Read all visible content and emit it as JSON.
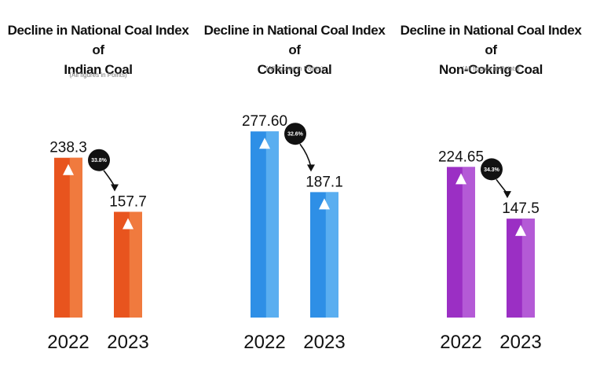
{
  "chart_data": [
    {
      "type": "bar",
      "title_lines": [
        "Decline in National Coal Index of",
        "Indian Coal"
      ],
      "subtitle": "(All figures in Points)",
      "categories": [
        "2022",
        "2023"
      ],
      "values": [
        238.3,
        157.7
      ],
      "value_labels": [
        "238.3",
        "157.7"
      ],
      "decline_label": "33.8%",
      "color": "#e8541e",
      "highlight": "#f07a3e"
    },
    {
      "type": "bar",
      "title_lines": [
        "Decline in National Coal Index of",
        "Coking Coal"
      ],
      "subtitle": "(All figures in Points)",
      "categories": [
        "2022",
        "2023"
      ],
      "values": [
        277.6,
        187.1
      ],
      "value_labels": [
        "277.60",
        "187.1"
      ],
      "decline_label": "32.6%",
      "color": "#2e8fe6",
      "highlight": "#5aaef0"
    },
    {
      "type": "bar",
      "title_lines": [
        "Decline in National Coal Index of",
        "Non-Coking Coal"
      ],
      "subtitle": "(All figures in Points)",
      "categories": [
        "2022",
        "2023"
      ],
      "values": [
        224.65,
        147.5
      ],
      "value_labels": [
        "224.65",
        "147.5"
      ],
      "decline_label": "34.3%",
      "color": "#9b2fc4",
      "highlight": "#b45ad6"
    }
  ]
}
